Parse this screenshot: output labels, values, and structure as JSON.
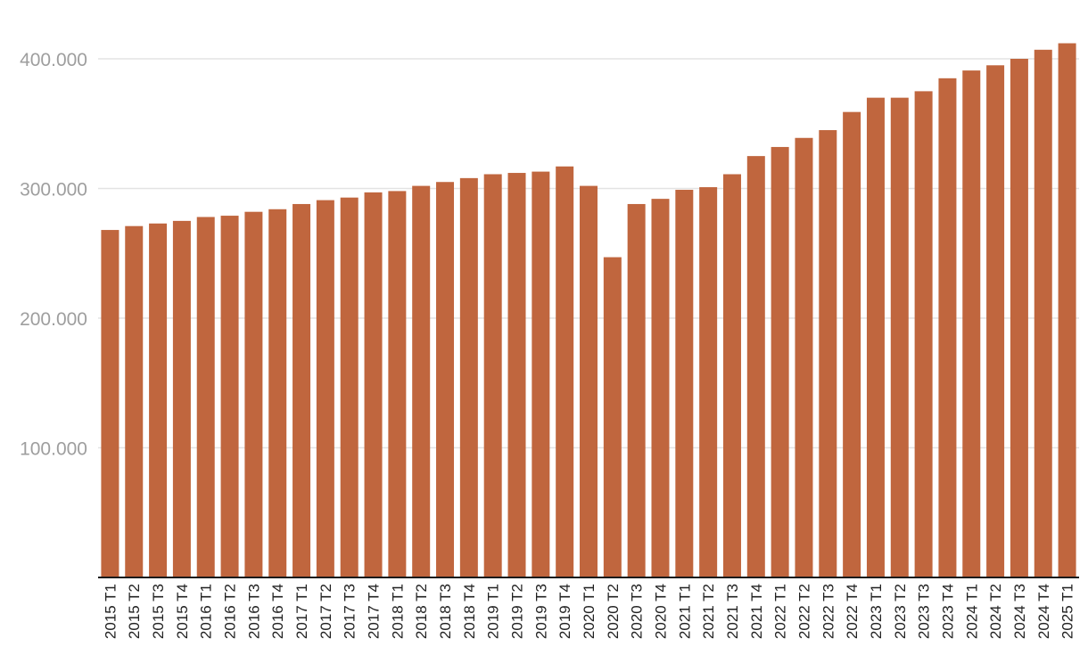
{
  "chart_data": {
    "type": "bar",
    "title": "",
    "xlabel": "",
    "ylabel": "",
    "ylim": [
      0,
      400000
    ],
    "yticks": [
      100000,
      200000,
      300000,
      400000
    ],
    "ytick_labels": [
      "100.000",
      "200.000",
      "300.000",
      "400.000"
    ],
    "grid": true,
    "legend": "none",
    "bar_color": "#c0663e",
    "categories": [
      "2015 T1",
      "2015 T2",
      "2015 T3",
      "2015 T4",
      "2016 T1",
      "2016 T2",
      "2016 T3",
      "2016 T4",
      "2017 T1",
      "2017 T2",
      "2017 T3",
      "2017 T4",
      "2018 T1",
      "2018 T2",
      "2018 T3",
      "2018 T4",
      "2019 T1",
      "2019 T2",
      "2019 T3",
      "2019 T4",
      "2020 T1",
      "2020 T2",
      "2020 T3",
      "2020 T4",
      "2021 T1",
      "2021 T2",
      "2021 T3",
      "2021 T4",
      "2022 T1",
      "2022 T2",
      "2022 T3",
      "2022 T4",
      "2023 T1",
      "2023 T2",
      "2023 T3",
      "2023 T4",
      "2024 T1",
      "2024 T2",
      "2024 T3",
      "2024 T4",
      "2025 T1"
    ],
    "values": [
      268000,
      271000,
      273000,
      275000,
      278000,
      279000,
      282000,
      284000,
      288000,
      291000,
      293000,
      297000,
      298000,
      302000,
      305000,
      308000,
      311000,
      312000,
      313000,
      317000,
      302000,
      247000,
      288000,
      292000,
      299000,
      301000,
      311000,
      325000,
      332000,
      339000,
      345000,
      359000,
      370000,
      370000,
      375000,
      385000,
      391000,
      395000,
      400000,
      407000,
      412000
    ]
  }
}
